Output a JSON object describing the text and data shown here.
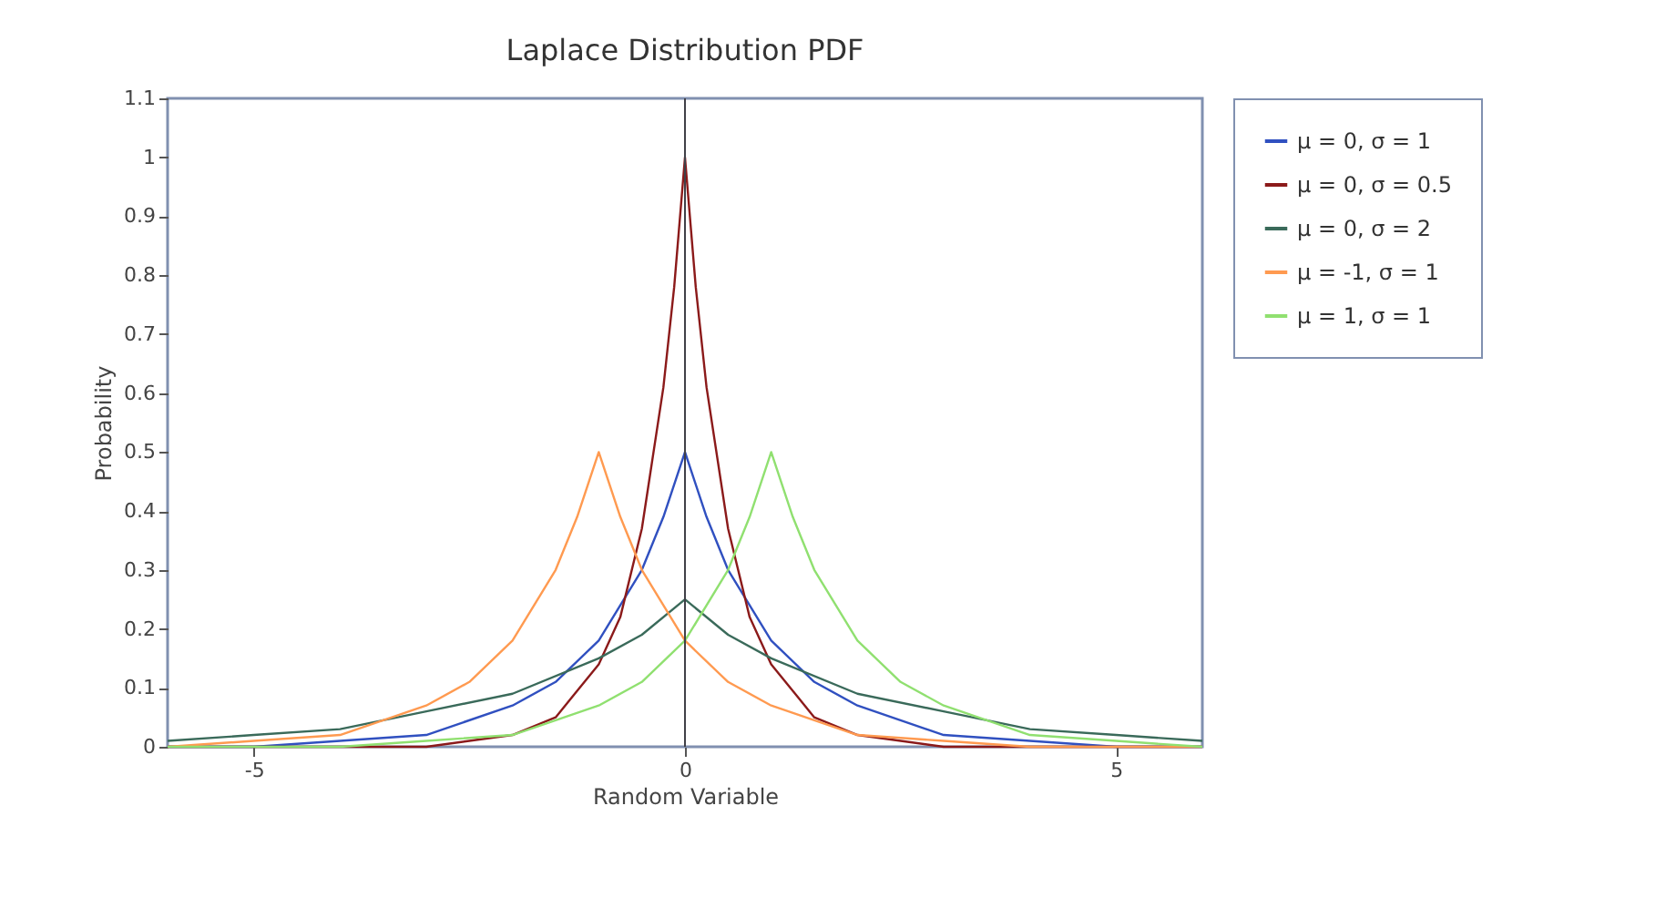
{
  "chart_data": {
    "type": "line",
    "title": "Laplace Distribution PDF",
    "xlabel": "Random Variable",
    "ylabel": "Probability",
    "xlim": [
      -6,
      6
    ],
    "xticks": [
      -5,
      0,
      5
    ],
    "ylim": [
      0,
      1.1
    ],
    "yticks": [
      0,
      0.1,
      0.2,
      0.3,
      0.4,
      0.5,
      0.6,
      0.7,
      0.8,
      0.9,
      1,
      1.1
    ],
    "grid": false,
    "legend": "right",
    "marker": "none",
    "line_style": "solid",
    "ref_lines": [
      {
        "axis": "x",
        "value": 0,
        "color": "#404048"
      }
    ],
    "series": [
      {
        "name": "μ = 0, σ = 1",
        "color": "#3050c0",
        "x": [
          -6,
          -5,
          -4,
          -3,
          -2,
          -1.5,
          -1,
          -0.5,
          -0.25,
          0,
          0.25,
          0.5,
          1,
          1.5,
          2,
          3,
          4,
          5,
          6
        ],
        "values": [
          0,
          0,
          0.01,
          0.02,
          0.07,
          0.11,
          0.18,
          0.3,
          0.39,
          0.5,
          0.39,
          0.3,
          0.18,
          0.11,
          0.07,
          0.02,
          0.01,
          0,
          0
        ]
      },
      {
        "name": "μ = 0, σ = 0.5",
        "color": "#8b1a1a",
        "x": [
          -6,
          -4,
          -3,
          -2,
          -1.5,
          -1,
          -0.75,
          -0.5,
          -0.25,
          -0.125,
          0,
          0.125,
          0.25,
          0.5,
          0.75,
          1,
          1.5,
          2,
          3,
          4,
          6
        ],
        "values": [
          0,
          0,
          0,
          0.02,
          0.05,
          0.14,
          0.22,
          0.37,
          0.61,
          0.78,
          1,
          0.78,
          0.61,
          0.37,
          0.22,
          0.14,
          0.05,
          0.02,
          0,
          0,
          0
        ]
      },
      {
        "name": "μ = 0, σ = 2",
        "color": "#3a6a5a",
        "x": [
          -6,
          -5,
          -4,
          -3,
          -2,
          -1,
          -0.5,
          0,
          0.5,
          1,
          2,
          3,
          4,
          5,
          6
        ],
        "values": [
          0.01,
          0.02,
          0.03,
          0.06,
          0.09,
          0.15,
          0.19,
          0.25,
          0.19,
          0.15,
          0.09,
          0.06,
          0.03,
          0.02,
          0.01
        ]
      },
      {
        "name": "μ = -1, σ = 1",
        "color": "#ff9a50",
        "x": [
          -6,
          -5,
          -4,
          -3,
          -2.5,
          -2,
          -1.5,
          -1.25,
          -1,
          -0.75,
          -0.5,
          0,
          0.5,
          1,
          2,
          3,
          4,
          5,
          6
        ],
        "values": [
          0,
          0.01,
          0.02,
          0.07,
          0.11,
          0.18,
          0.3,
          0.39,
          0.5,
          0.39,
          0.3,
          0.18,
          0.11,
          0.07,
          0.02,
          0.01,
          0,
          0,
          0
        ]
      },
      {
        "name": "μ = 1, σ = 1",
        "color": "#90e070",
        "x": [
          -6,
          -5,
          -4,
          -3,
          -2,
          -1,
          -0.5,
          0,
          0.5,
          0.75,
          1,
          1.25,
          1.5,
          2,
          2.5,
          3,
          4,
          5,
          6
        ],
        "values": [
          0,
          0,
          0,
          0.01,
          0.02,
          0.07,
          0.11,
          0.18,
          0.3,
          0.39,
          0.5,
          0.39,
          0.3,
          0.18,
          0.11,
          0.07,
          0.02,
          0.01,
          0
        ]
      }
    ]
  }
}
